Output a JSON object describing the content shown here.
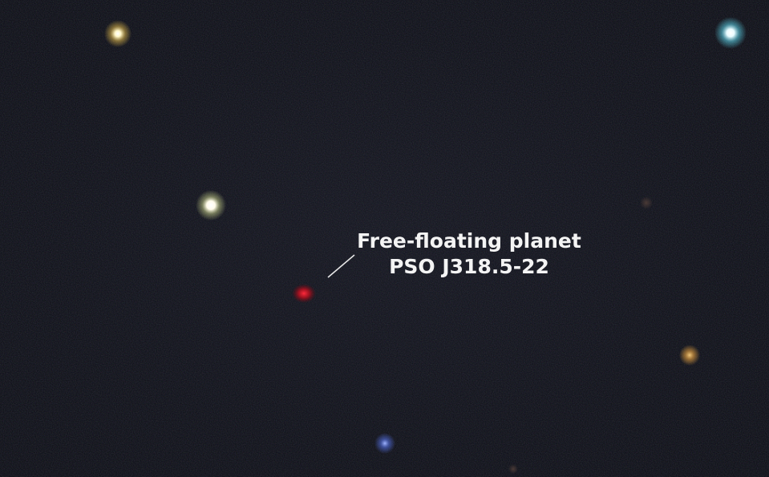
{
  "annotation": {
    "line1": "Free-floating planet",
    "line2": "PSO J318.5-22",
    "text_color": "#f4f4f4"
  },
  "colors": {
    "sky": "#0b0d16",
    "planet": "#c8182c"
  }
}
